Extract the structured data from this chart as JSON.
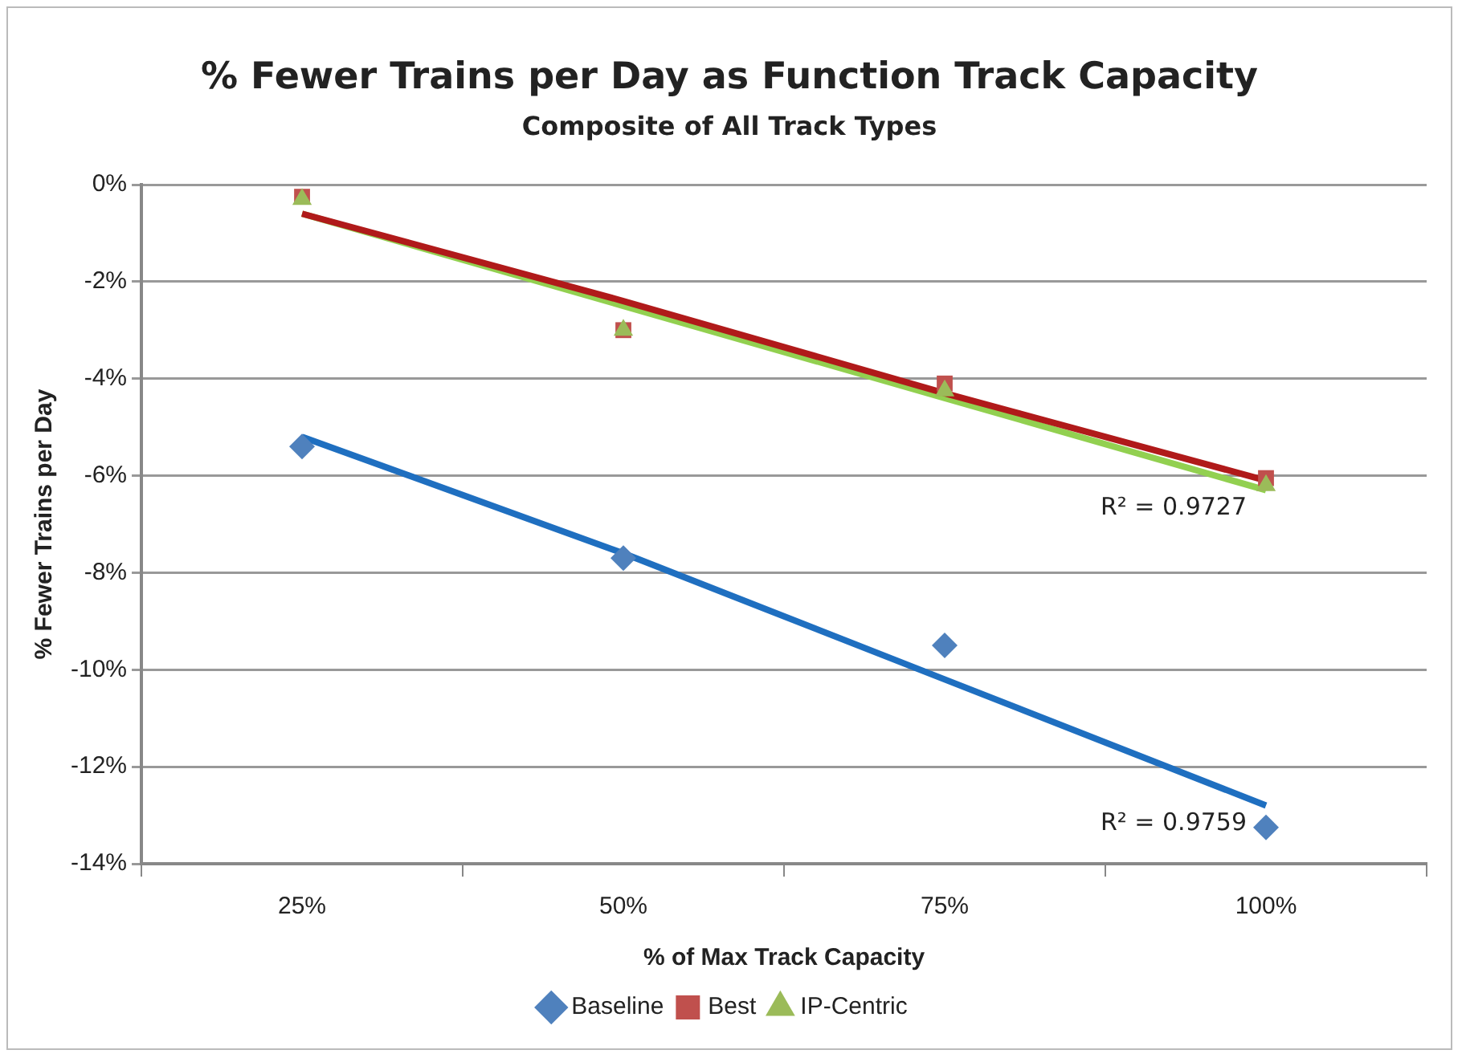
{
  "chart_data": {
    "type": "scatter",
    "title": "% Fewer Trains per Day as Function Track Capacity",
    "subtitle": "Composite of All Track Types",
    "xlabel": "% of Max Track Capacity",
    "ylabel": "% Fewer Trains per Day",
    "categories": [
      "25%",
      "50%",
      "75%",
      "100%"
    ],
    "series": [
      {
        "name": "Baseline",
        "color": "#4f81bd",
        "marker": "diamond",
        "values": [
          -5.4,
          -7.7,
          -9.5,
          -13.25
        ]
      },
      {
        "name": "Best",
        "color": "#c0504d",
        "marker": "square",
        "values": [
          -0.25,
          -3.0,
          -4.1,
          -6.05
        ]
      },
      {
        "name": "IP-Centric",
        "color": "#9bbb59",
        "marker": "triangle",
        "values": [
          -0.3,
          -3.0,
          -4.25,
          -6.2
        ]
      },
      {
        "type": "line",
        "color": "#1f6fc0",
        "marker": "none",
        "values": [
          -5.2,
          -7.6,
          -10.2,
          -12.8
        ]
      },
      {
        "type": "line",
        "color": "#b01a1a",
        "marker": "none",
        "values": [
          -0.6,
          -2.4,
          -4.3,
          -6.1
        ]
      },
      {
        "type": "line",
        "color": "#92d050",
        "marker": "none",
        "values": [
          -0.6,
          -2.5,
          -4.4,
          -6.3
        ]
      }
    ],
    "ylim": [
      -14,
      0
    ],
    "yticks": [
      {
        "value": 0,
        "label": "0%"
      },
      {
        "value": -2,
        "label": "-2%"
      },
      {
        "value": -4,
        "label": "-4%"
      },
      {
        "value": -6,
        "label": "-6%"
      },
      {
        "value": -8,
        "label": "-8%"
      },
      {
        "value": -10,
        "label": "-10%"
      },
      {
        "value": -12,
        "label": "-12%"
      },
      {
        "value": -14,
        "label": "-14%"
      }
    ],
    "annotations": [
      {
        "text": "R² = 0.9727",
        "x": "100%",
        "y": -6.3
      },
      {
        "text": "R² = 0.9759",
        "x": "100%",
        "y": -12.8
      }
    ],
    "grid": "y",
    "legend": "bottom",
    "line_style": "solid"
  }
}
